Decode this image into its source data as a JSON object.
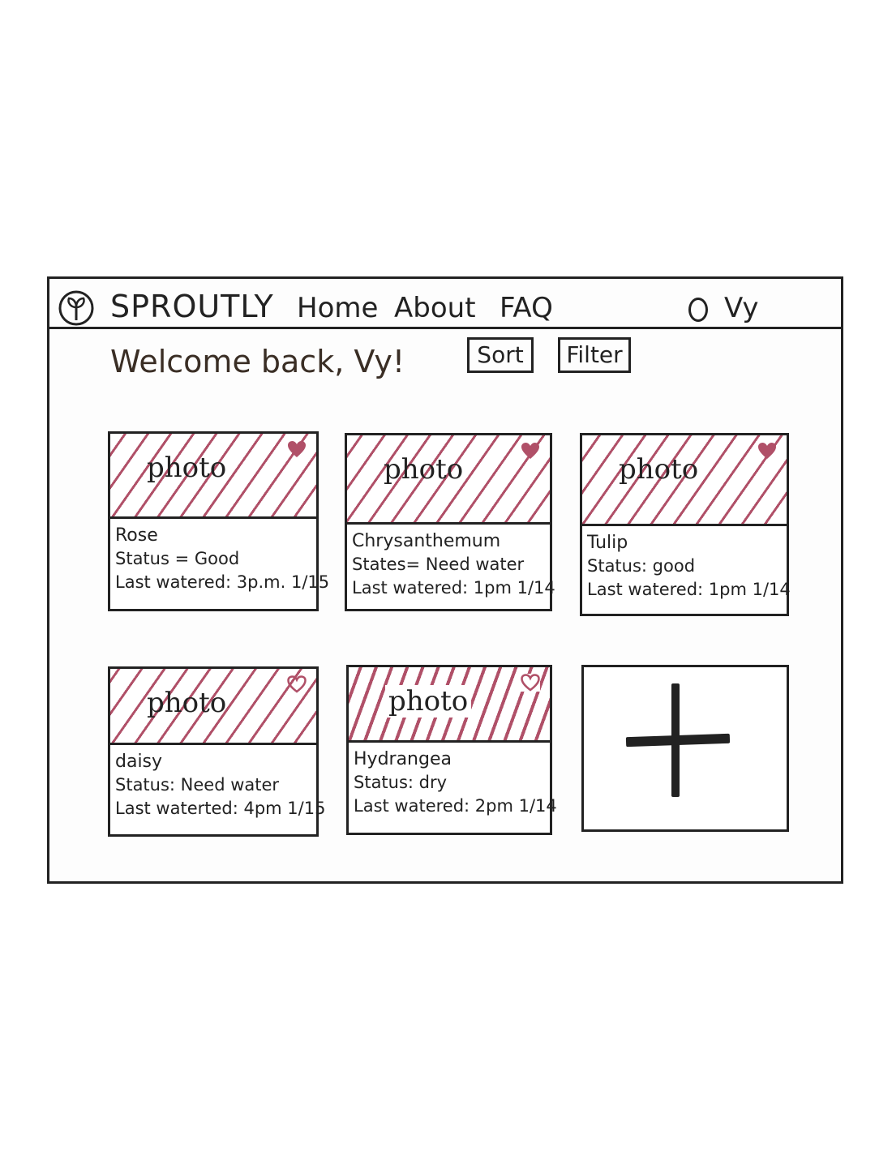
{
  "app": {
    "brand": "SPROUTLY",
    "logo_icon": "plant-circle-icon"
  },
  "nav": {
    "home": "Home",
    "about": "About",
    "faq": "FAQ",
    "user": "Vy"
  },
  "main": {
    "welcome": "Welcome back, Vy!",
    "sort_label": "Sort",
    "filter_label": "Filter",
    "photo_placeholder": "photo",
    "add_icon": "plus-icon"
  },
  "colors": {
    "accent": "#b05068",
    "ink": "#222222"
  },
  "plants": [
    {
      "name": "Rose",
      "status": "Status = Good",
      "watered": "Last watered: 3p.m. 1/15",
      "favorite": true
    },
    {
      "name": "Chrysanthemum",
      "status": "States= Need water",
      "watered": "Last watered: 1pm 1/14",
      "favorite": true
    },
    {
      "name": "Tulip",
      "status": "Status: good",
      "watered": "Last watered: 1pm 1/14",
      "favorite": true
    },
    {
      "name": "daisy",
      "status": "Status: Need water",
      "watered": "Last waterted: 4pm 1/15",
      "favorite": false
    },
    {
      "name": "Hydrangea",
      "status": "Status: dry",
      "watered": "Last watered: 2pm 1/14",
      "favorite": false
    }
  ]
}
